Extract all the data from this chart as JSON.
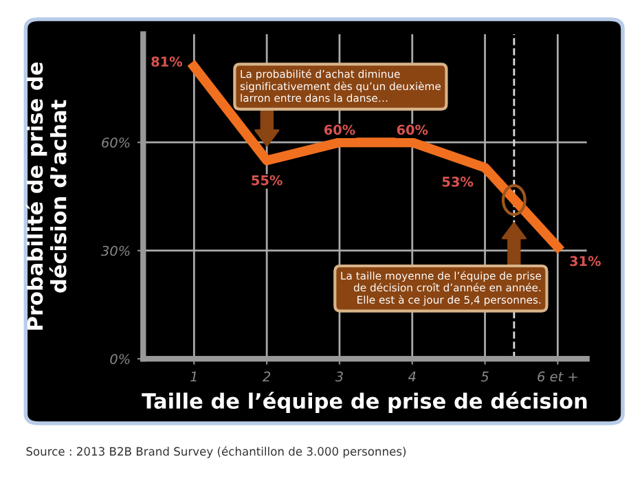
{
  "chart_data": {
    "type": "line",
    "xlabel": "Taille de l’équipe de prise de décision",
    "ylabel": "Probabilité de prise de\ndécision d’achat",
    "x": [
      1,
      2,
      3,
      4,
      5,
      6
    ],
    "series": [
      {
        "color": "#f07020",
        "values": [
          81,
          55,
          60,
          60,
          53,
          31
        ],
        "value_labels": [
          "81%",
          "55%",
          "60%",
          "60%",
          "53%",
          "31%"
        ]
      }
    ],
    "xlim": [
      0.3,
      6.4
    ],
    "xticks": [
      1,
      2,
      3,
      4,
      5,
      {
        "value": 6,
        "label": "6 et +"
      }
    ],
    "ylim": [
      0,
      90
    ],
    "yticks": [
      {
        "value": 0,
        "label": "0%"
      },
      {
        "value": 30,
        "label": "30%"
      },
      {
        "value": 60,
        "label": "60%"
      }
    ],
    "grid": true,
    "marker": "none",
    "line_style": "solid",
    "ref_lines": [
      {
        "axis": "x",
        "value": 5.4,
        "color": "#dddddd",
        "line_style": "dashed"
      }
    ],
    "annotations": [
      "La probabilité d’achat diminue\nsignificativement dès qu’un deuxième\nlarron entre dans la danse…",
      "La taille moyenne de l’équipe de prise\nde décision croît d’année en année.\nElle est à ce jour de 5,4 personnes.",
      "Source : 2013 B2B Brand Survey (échantillon de 3.000 personnes)"
    ]
  }
}
